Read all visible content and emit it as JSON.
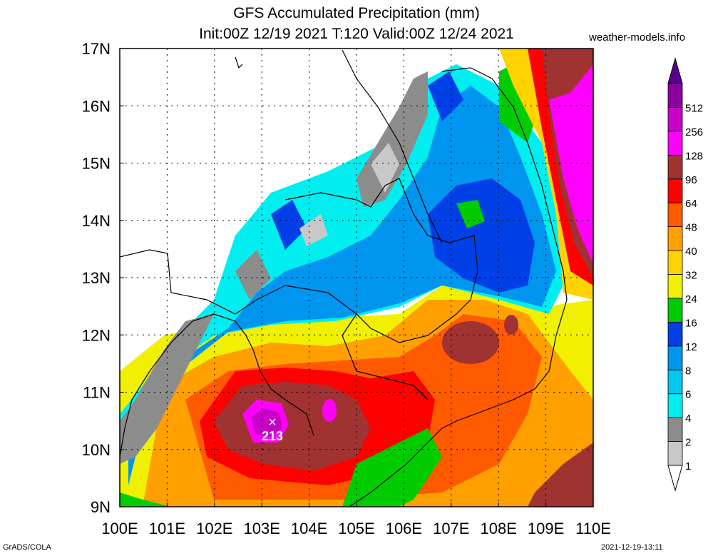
{
  "title": {
    "line1": "GFS Accumulated Precipitation (mm)",
    "line2": "Init:00Z 12/19 2021 T:120 Valid:00Z 12/24 2021"
  },
  "site": "weather-models.info",
  "footer": {
    "left": "GrADS/COLA",
    "right": "2021-12-19-13:11"
  },
  "axes": {
    "lon_labels": [
      "100E",
      "101E",
      "102E",
      "103E",
      "104E",
      "105E",
      "106E",
      "107E",
      "108E",
      "109E",
      "110E"
    ],
    "lat_labels": [
      "9N",
      "10N",
      "11N",
      "12N",
      "13N",
      "14N",
      "15N",
      "16N",
      "17N"
    ]
  },
  "legend": {
    "items": [
      {
        "label": "1",
        "color": "#c8c8c8"
      },
      {
        "label": "2",
        "color": "#8c8c8c"
      },
      {
        "label": "4",
        "color": "#00eef0"
      },
      {
        "label": "6",
        "color": "#00c8f0"
      },
      {
        "label": "8",
        "color": "#0096f0"
      },
      {
        "label": "12",
        "color": "#0040e6"
      },
      {
        "label": "16",
        "color": "#00cc00"
      },
      {
        "label": "24",
        "color": "#f0f000"
      },
      {
        "label": "32",
        "color": "#ffd200"
      },
      {
        "label": "40",
        "color": "#ffa000"
      },
      {
        "label": "48",
        "color": "#ff5a00"
      },
      {
        "label": "64",
        "color": "#ff0000"
      },
      {
        "label": "96",
        "color": "#a03232"
      },
      {
        "label": "128",
        "color": "#ff00ff"
      },
      {
        "label": "256",
        "color": "#c800c8"
      },
      {
        "label": "512",
        "color": "#8c00a0"
      }
    ],
    "top_arrow_color": "#5a0090"
  },
  "max_marker": {
    "symbol": "×",
    "value": "213"
  }
}
